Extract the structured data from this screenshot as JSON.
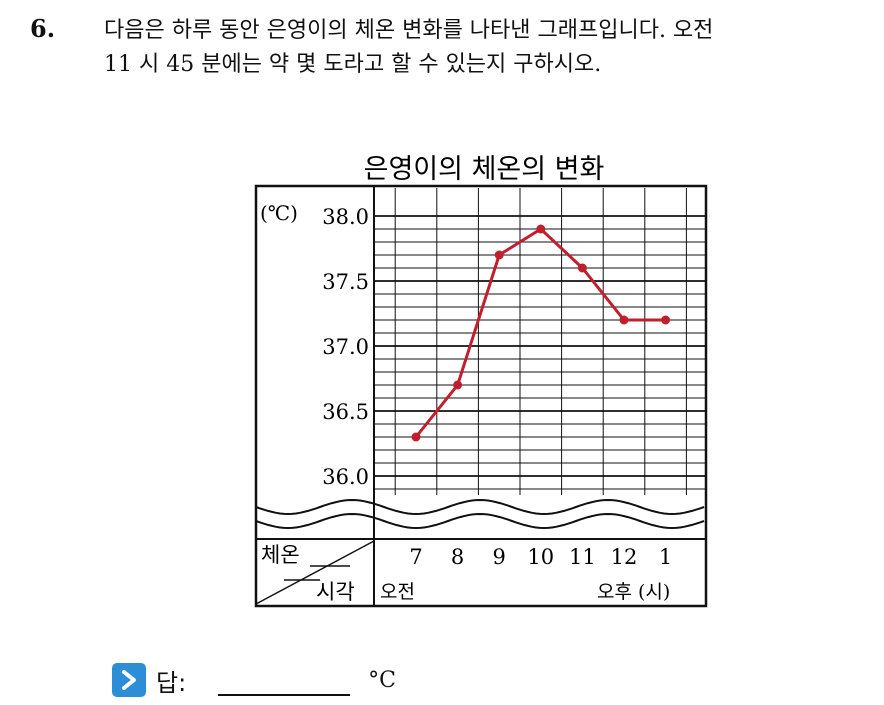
{
  "question": {
    "number": "6.",
    "line1": "다음은 하루 동안 은영이의 체온 변화를 나타낸 그래프입니다. 오전",
    "line2": "11 시 45 분에는 약 몇 도라고 할 수 있는지 구하시오."
  },
  "chart_data": {
    "type": "line",
    "title": "은영이의 체온의 변화",
    "unit_label": "(℃)",
    "y_ticks": [
      "38.0",
      "37.5",
      "37.0",
      "36.5",
      "36.0"
    ],
    "ylim": [
      35.8,
      38.0
    ],
    "y_minor_step": 0.1,
    "axis_break": true,
    "x_categories": [
      "7",
      "8",
      "9",
      "10",
      "11",
      "12",
      "1"
    ],
    "x_hours": [
      7,
      8,
      9,
      10,
      11,
      12,
      13
    ],
    "series": [
      {
        "values": [
          36.3,
          36.7,
          37.7,
          37.9,
          37.6,
          37.2,
          37.2
        ]
      }
    ],
    "line_color": "#c0202e",
    "header_top": "체온",
    "header_bottom": "시각",
    "am_label": "오전",
    "pm_label": "오후",
    "hour_unit": "(시)"
  },
  "answer": {
    "label": "답:",
    "unit": "°C"
  }
}
